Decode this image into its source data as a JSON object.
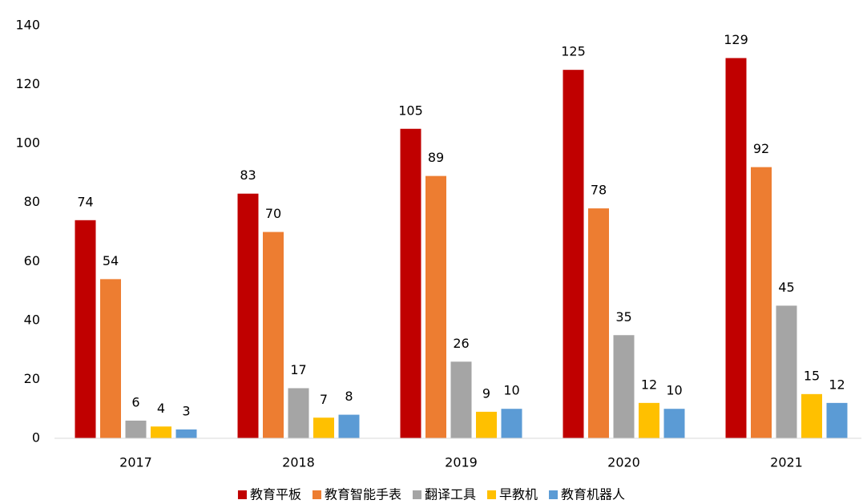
{
  "chart_data": {
    "type": "bar",
    "categories": [
      "2017",
      "2018",
      "2019",
      "2020",
      "2021"
    ],
    "series": [
      {
        "name": "教育平板",
        "color": "#c00000",
        "values": [
          74,
          83,
          105,
          125,
          129
        ]
      },
      {
        "name": "教育智能手表",
        "color": "#ed7d31",
        "values": [
          54,
          70,
          89,
          78,
          92
        ]
      },
      {
        "name": "翻译工具",
        "color": "#a5a5a5",
        "values": [
          6,
          17,
          26,
          35,
          45
        ]
      },
      {
        "name": "早教机",
        "color": "#ffc000",
        "values": [
          4,
          7,
          9,
          12,
          15
        ]
      },
      {
        "name": "教育机器人",
        "color": "#5b9bd5",
        "values": [
          3,
          8,
          10,
          10,
          12
        ]
      }
    ],
    "ylim": [
      0,
      140
    ],
    "yticks": [
      0,
      20,
      40,
      60,
      80,
      100,
      120,
      140
    ],
    "grid": false,
    "legend": "bottom"
  }
}
